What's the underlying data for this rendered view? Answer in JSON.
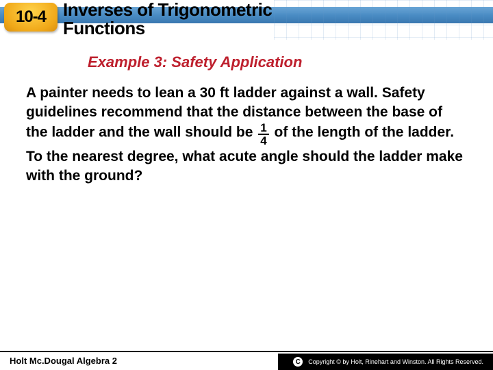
{
  "header": {
    "badge": "10-4",
    "title_line1": "Inverses of Trigonometric",
    "title_line2": "Functions",
    "band_color": "#4a8cc4",
    "badge_bg": "#f0a818"
  },
  "example": {
    "heading": "Example 3: Safety Application",
    "heading_color": "#be202e"
  },
  "problem": {
    "pre": "A painter needs to lean a 30 ft ladder against a wall. Safety guidelines recommend that the distance between the base of the ladder and the wall should be ",
    "frac_num": "1",
    "frac_den": "4",
    "post": " of the length of the ladder. To the nearest degree, what acute angle should the ladder make with the ground?"
  },
  "footer": {
    "left": "Holt Mc.Dougal Algebra 2",
    "copyright": "Copyright © by Holt, Rinehart and Winston. All Rights Reserved."
  },
  "colors": {
    "text": "#000000",
    "background": "#ffffff"
  }
}
